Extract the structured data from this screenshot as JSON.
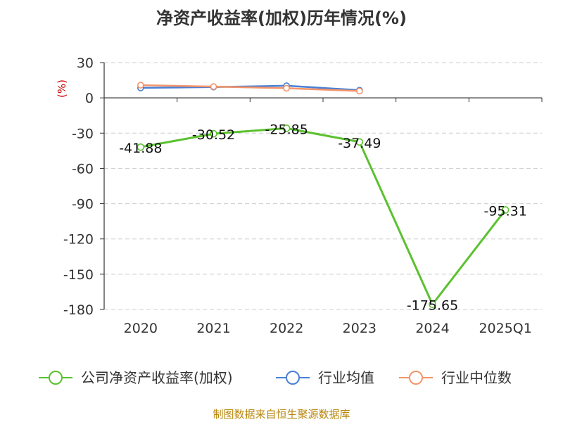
{
  "chart_data": {
    "type": "line",
    "title": "净资产收益率(加权)历年情况(%)",
    "ylabel": "(%)",
    "categories": [
      "2020",
      "2021",
      "2022",
      "2023",
      "2024",
      "2025Q1"
    ],
    "y_ticks": [
      30,
      0,
      -30,
      -60,
      -90,
      -120,
      -150,
      -180
    ],
    "ylim": [
      -180,
      30
    ],
    "grid": true,
    "legend_position": "bottom",
    "series": [
      {
        "name": "公司净资产收益率(加权)",
        "color": "#5bc12f",
        "values": [
          -41.88,
          -30.52,
          -25.85,
          -37.49,
          -175.65,
          -95.31
        ],
        "labels": [
          "-41.88",
          "-30.52",
          "-25.85",
          "-37.49",
          "-175.65",
          "-95.31"
        ]
      },
      {
        "name": "行业均值",
        "color": "#4a7fd4",
        "values": [
          8.5,
          9.2,
          10.3,
          6.5,
          null,
          null
        ]
      },
      {
        "name": "行业中位数",
        "color": "#f4956a",
        "values": [
          10.8,
          9.6,
          8.2,
          5.8,
          null,
          null
        ]
      }
    ],
    "source": "制图数据来自恒生聚源数据库"
  }
}
